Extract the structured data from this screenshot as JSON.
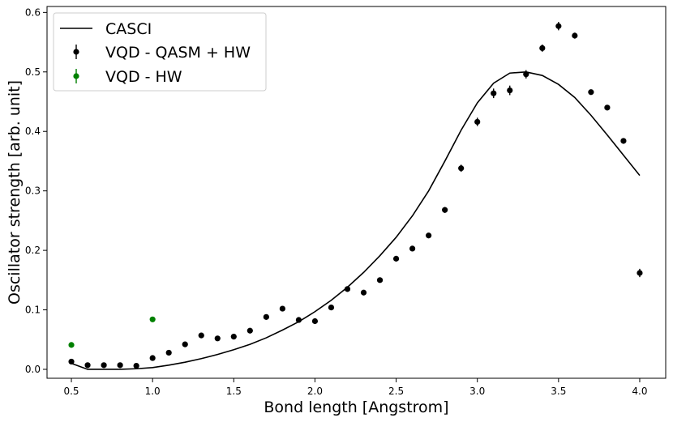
{
  "chart_data": {
    "type": "scatter",
    "title": "",
    "xlabel": "Bond length [Angstrom]",
    "ylabel": "Oscillator strength [arb. unit]",
    "xlim": [
      0.35,
      4.16
    ],
    "ylim": [
      -0.015,
      0.61
    ],
    "xticks": [
      0.5,
      1.0,
      1.5,
      2.0,
      2.5,
      3.0,
      3.5,
      4.0
    ],
    "xtick_labels": [
      "0.5",
      "1.0",
      "1.5",
      "2.0",
      "2.5",
      "3.0",
      "3.5",
      "4.0"
    ],
    "yticks": [
      0.0,
      0.1,
      0.2,
      0.3,
      0.4,
      0.5,
      0.6
    ],
    "ytick_labels": [
      "0.0",
      "0.1",
      "0.2",
      "0.3",
      "0.4",
      "0.5",
      "0.6"
    ],
    "legend_position": "top-left",
    "series": [
      {
        "name": "CASCI",
        "kind": "line",
        "color": "#000000",
        "x": [
          0.5,
          0.6,
          0.7,
          0.8,
          0.9,
          1.0,
          1.1,
          1.2,
          1.3,
          1.4,
          1.5,
          1.6,
          1.7,
          1.8,
          1.9,
          2.0,
          2.1,
          2.2,
          2.3,
          2.4,
          2.5,
          2.6,
          2.7,
          2.8,
          2.9,
          3.0,
          3.1,
          3.2,
          3.3,
          3.4,
          3.5,
          3.6,
          3.7,
          3.8,
          3.9,
          4.0
        ],
        "y": [
          0.01,
          0.0,
          0.0,
          0.0,
          0.001,
          0.003,
          0.007,
          0.012,
          0.018,
          0.025,
          0.033,
          0.042,
          0.053,
          0.066,
          0.08,
          0.097,
          0.116,
          0.138,
          0.163,
          0.191,
          0.222,
          0.258,
          0.3,
          0.35,
          0.402,
          0.448,
          0.481,
          0.498,
          0.5,
          0.494,
          0.479,
          0.457,
          0.427,
          0.394,
          0.36,
          0.326
        ]
      },
      {
        "name": "VQD - QASM + HW",
        "kind": "errorbar",
        "color": "#000000",
        "x": [
          0.5,
          0.6,
          0.7,
          0.8,
          0.9,
          1.0,
          1.1,
          1.2,
          1.3,
          1.4,
          1.5,
          1.6,
          1.7,
          1.8,
          1.9,
          2.0,
          2.1,
          2.2,
          2.3,
          2.4,
          2.5,
          2.6,
          2.7,
          2.8,
          2.9,
          3.0,
          3.1,
          3.2,
          3.3,
          3.4,
          3.5,
          3.6,
          3.7,
          3.8,
          3.9,
          4.0
        ],
        "y": [
          0.013,
          0.007,
          0.007,
          0.007,
          0.006,
          0.019,
          0.028,
          0.042,
          0.057,
          0.052,
          0.055,
          0.065,
          0.088,
          0.102,
          0.083,
          0.081,
          0.104,
          0.135,
          0.129,
          0.15,
          0.186,
          0.203,
          0.225,
          0.268,
          0.338,
          0.416,
          0.464,
          0.469,
          0.496,
          0.54,
          0.577,
          0.561,
          0.466,
          0.44,
          0.384,
          0.162
        ],
        "err": [
          0.003,
          0.003,
          0.003,
          0.003,
          0.003,
          0.003,
          0.003,
          0.003,
          0.003,
          0.003,
          0.003,
          0.003,
          0.003,
          0.003,
          0.003,
          0.003,
          0.003,
          0.003,
          0.003,
          0.003,
          0.003,
          0.003,
          0.003,
          0.005,
          0.006,
          0.007,
          0.008,
          0.008,
          0.007,
          0.006,
          0.007,
          0.005,
          0.004,
          0.004,
          0.004,
          0.007
        ]
      },
      {
        "name": "VQD - HW",
        "kind": "errorbar",
        "color": "#008000",
        "x": [
          0.5,
          1.0
        ],
        "y": [
          0.041,
          0.084
        ],
        "err": [
          0.003,
          0.004
        ]
      }
    ]
  }
}
